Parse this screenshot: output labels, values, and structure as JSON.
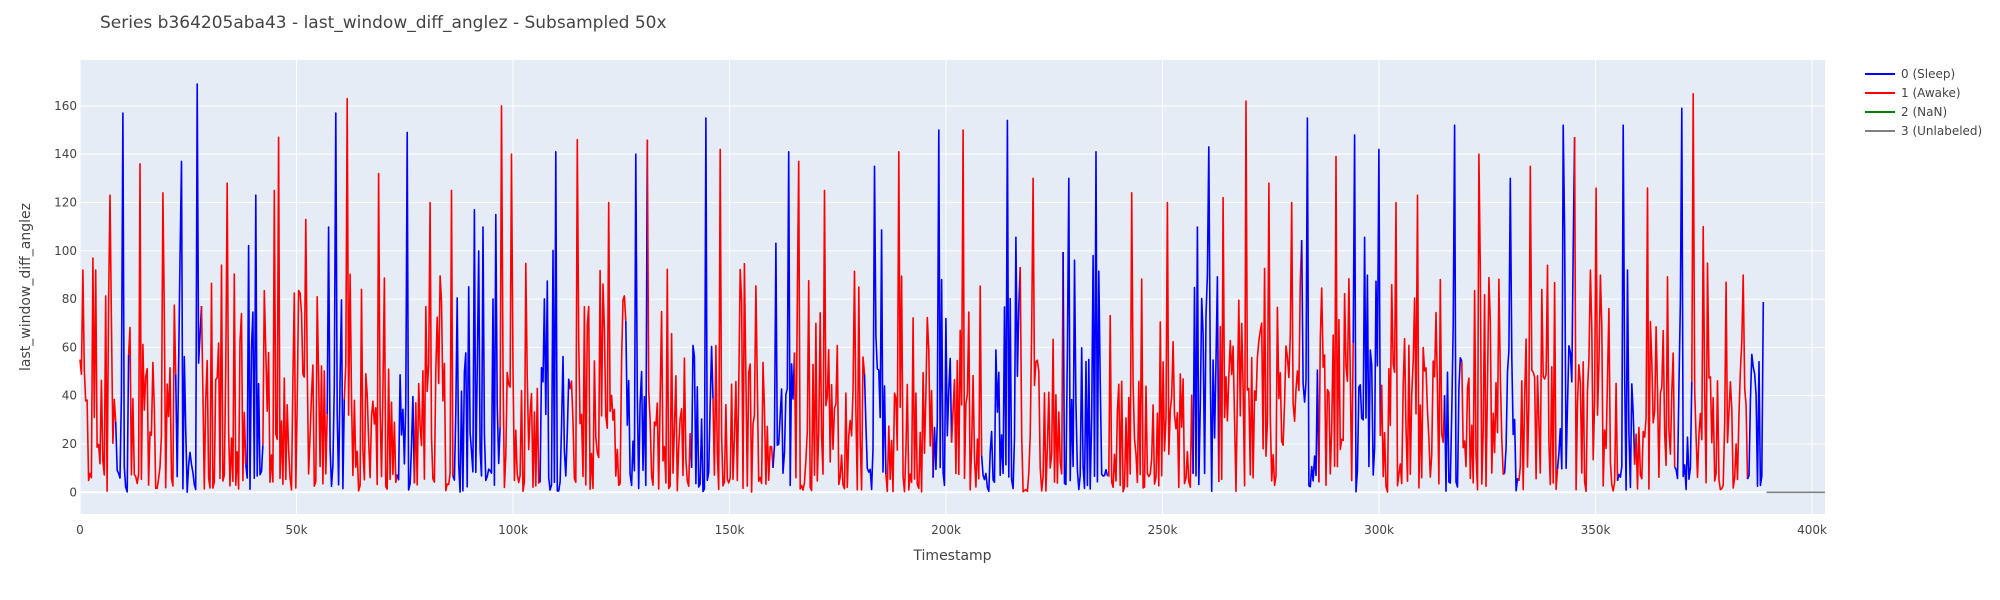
{
  "chart_data": {
    "type": "line",
    "title": "Series b364205aba43 - last_window_diff_anglez - Subsampled 50x",
    "xlabel": "Timestamp",
    "ylabel": "last_window_diff_anglez",
    "xlim": [
      0,
      403000
    ],
    "ylim": [
      -9,
      179
    ],
    "x_ticks": [
      0,
      50000,
      100000,
      150000,
      200000,
      250000,
      300000,
      350000,
      400000
    ],
    "x_tick_labels": [
      "0",
      "50k",
      "100k",
      "150k",
      "200k",
      "250k",
      "300k",
      "350k",
      "400k"
    ],
    "y_ticks": [
      0,
      20,
      40,
      60,
      80,
      100,
      120,
      140,
      160
    ],
    "y_tick_labels": [
      "0",
      "20",
      "40",
      "60",
      "80",
      "100",
      "120",
      "140",
      "160"
    ],
    "grid": true,
    "legend_position": "top-right",
    "series": [
      {
        "name": "0 (Sleep)",
        "color": "#0000ff",
        "segments": [
          [
            8000,
            11000
          ],
          [
            22000,
            28000
          ],
          [
            38000,
            42000
          ],
          [
            57000,
            61000
          ],
          [
            73000,
            77000
          ],
          [
            86000,
            97000
          ],
          [
            106000,
            113000
          ],
          [
            126000,
            131000
          ],
          [
            141000,
            146000
          ],
          [
            160000,
            165000
          ],
          [
            181000,
            186000
          ],
          [
            197000,
            201000
          ],
          [
            208000,
            217000
          ],
          [
            227000,
            237000
          ],
          [
            257000,
            263000
          ],
          [
            282000,
            286000
          ],
          [
            294000,
            300000
          ],
          [
            315000,
            319000
          ],
          [
            329000,
            332000
          ],
          [
            341000,
            345000
          ],
          [
            355000,
            359000
          ],
          [
            368000,
            372000
          ],
          [
            385000,
            390000
          ]
        ],
        "peaks": [
          [
            10000,
            157
          ],
          [
            23500,
            137
          ],
          [
            27000,
            169
          ],
          [
            40500,
            123
          ],
          [
            59000,
            157
          ],
          [
            75500,
            149
          ],
          [
            91000,
            117
          ],
          [
            96000,
            115
          ],
          [
            109800,
            141
          ],
          [
            128300,
            140
          ],
          [
            144400,
            155
          ],
          [
            163800,
            141
          ],
          [
            183500,
            135
          ],
          [
            198300,
            150
          ],
          [
            214300,
            154
          ],
          [
            228200,
            130
          ],
          [
            234700,
            141
          ],
          [
            260700,
            143
          ],
          [
            283500,
            155
          ],
          [
            294300,
            148
          ],
          [
            301700,
            142
          ],
          [
            317600,
            152
          ],
          [
            330300,
            130
          ],
          [
            342500,
            152
          ],
          [
            356500,
            152
          ],
          [
            369800,
            159
          ]
        ],
        "points": [
          [
            0,
            0
          ],
          [
            8000,
            12
          ],
          [
            11000,
            6
          ],
          [
            22000,
            8
          ],
          [
            28000,
            14
          ],
          [
            38000,
            10
          ],
          [
            42000,
            7
          ],
          [
            57000,
            13
          ],
          [
            61000,
            6
          ],
          [
            73000,
            9
          ],
          [
            77000,
            8
          ],
          [
            86000,
            5
          ],
          [
            97000,
            7
          ],
          [
            106000,
            11
          ],
          [
            113000,
            8
          ],
          [
            126000,
            10
          ],
          [
            131000,
            6
          ],
          [
            141000,
            9
          ],
          [
            146000,
            12
          ],
          [
            160000,
            8
          ],
          [
            165000,
            11
          ],
          [
            181000,
            10
          ],
          [
            186000,
            9
          ],
          [
            197000,
            8
          ],
          [
            201000,
            12
          ],
          [
            208000,
            7
          ],
          [
            217000,
            9
          ],
          [
            227000,
            10
          ],
          [
            237000,
            8
          ],
          [
            257000,
            11
          ],
          [
            263000,
            9
          ],
          [
            282000,
            10
          ],
          [
            286000,
            8
          ],
          [
            294000,
            9
          ],
          [
            300000,
            11
          ],
          [
            315000,
            10
          ],
          [
            319000,
            12
          ],
          [
            329000,
            8
          ],
          [
            332000,
            11
          ],
          [
            341000,
            9
          ],
          [
            345000,
            10
          ],
          [
            355000,
            12
          ],
          [
            359000,
            8
          ],
          [
            368000,
            11
          ],
          [
            372000,
            7
          ],
          [
            385000,
            10
          ],
          [
            390000,
            0
          ]
        ]
      },
      {
        "name": "1 (Awake)",
        "color": "#ff0000",
        "peaks": [
          [
            3000,
            97
          ],
          [
            7000,
            123
          ],
          [
            14000,
            136
          ],
          [
            19000,
            124
          ],
          [
            34000,
            128
          ],
          [
            45000,
            125
          ],
          [
            46000,
            147
          ],
          [
            52000,
            113
          ],
          [
            61800,
            163
          ],
          [
            69000,
            132
          ],
          [
            81000,
            120
          ],
          [
            88000,
            125
          ],
          [
            97200,
            160
          ],
          [
            99500,
            140
          ],
          [
            114800,
            146
          ],
          [
            122000,
            120
          ],
          [
            130000,
            146
          ],
          [
            148000,
            142
          ],
          [
            166000,
            137
          ],
          [
            172000,
            125
          ],
          [
            189000,
            141
          ],
          [
            204000,
            150
          ],
          [
            220000,
            130
          ],
          [
            243000,
            124
          ],
          [
            251000,
            120
          ],
          [
            264000,
            122
          ],
          [
            269400,
            162
          ],
          [
            274500,
            128
          ],
          [
            280000,
            120
          ],
          [
            290000,
            139
          ],
          [
            304000,
            120
          ],
          [
            309000,
            123
          ],
          [
            323000,
            140
          ],
          [
            335000,
            135
          ],
          [
            344000,
            147
          ],
          [
            350000,
            126
          ],
          [
            362000,
            126
          ],
          [
            372700,
            165
          ],
          [
            375000,
            110
          ],
          [
            380000,
            87
          ]
        ],
        "points": [
          [
            0,
            45
          ],
          [
            3000,
            97
          ],
          [
            7000,
            123
          ],
          [
            14000,
            136
          ],
          [
            19000,
            124
          ],
          [
            34000,
            128
          ],
          [
            46000,
            147
          ],
          [
            61800,
            163
          ],
          [
            69000,
            132
          ],
          [
            81000,
            120
          ],
          [
            88000,
            125
          ],
          [
            97200,
            160
          ],
          [
            114800,
            146
          ],
          [
            130000,
            146
          ],
          [
            148000,
            142
          ],
          [
            166000,
            137
          ],
          [
            189000,
            141
          ],
          [
            204000,
            150
          ],
          [
            220000,
            130
          ],
          [
            243000,
            124
          ],
          [
            251000,
            120
          ],
          [
            264000,
            122
          ],
          [
            269400,
            162
          ],
          [
            274500,
            128
          ],
          [
            290000,
            139
          ],
          [
            304000,
            120
          ],
          [
            323000,
            140
          ],
          [
            335000,
            135
          ],
          [
            344000,
            147
          ],
          [
            362000,
            126
          ],
          [
            372700,
            165
          ],
          [
            380000,
            87
          ],
          [
            388000,
            3
          ]
        ]
      },
      {
        "name": "2 (NaN)",
        "color": "#008000",
        "points": []
      },
      {
        "name": "3 (Unlabeled)",
        "color": "#808080",
        "points": [
          [
            389500,
            0
          ],
          [
            403000,
            0
          ]
        ]
      }
    ]
  }
}
